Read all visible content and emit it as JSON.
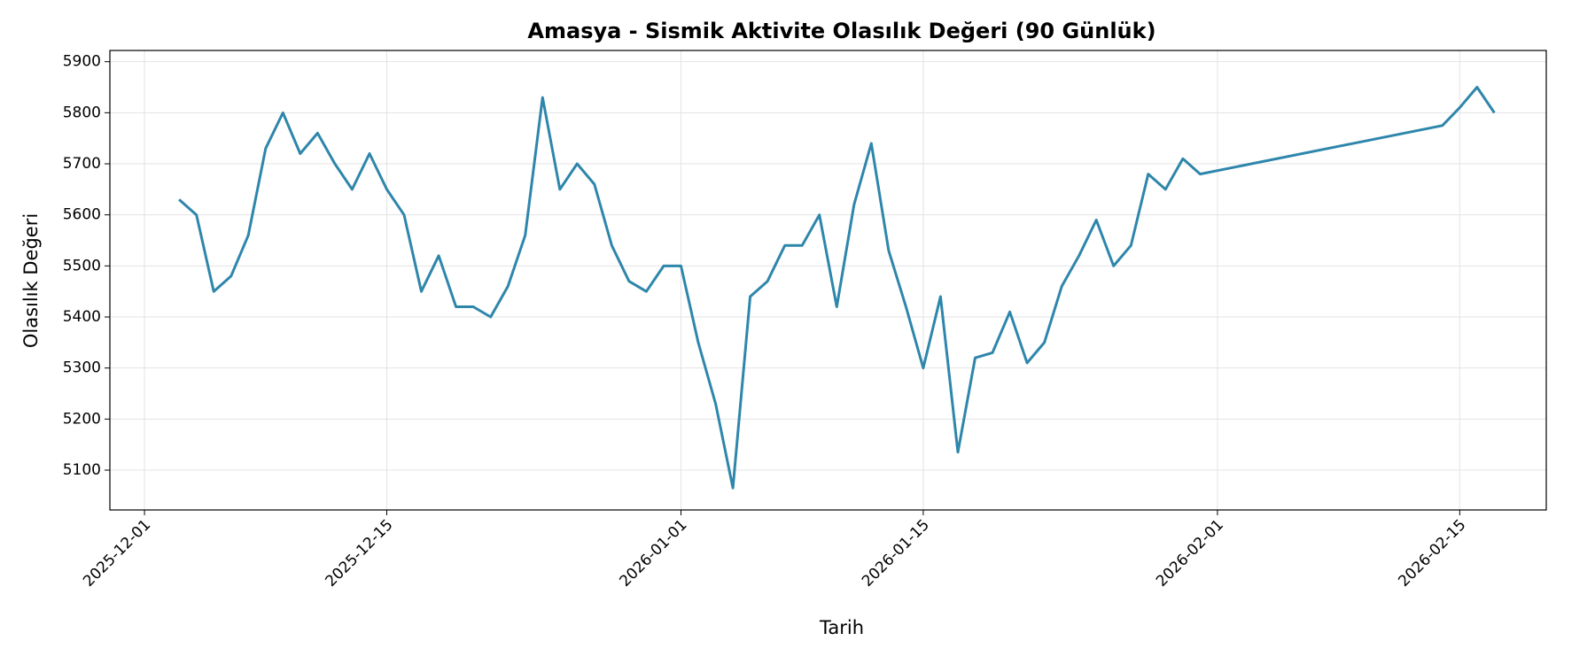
{
  "chart_data": {
    "type": "line",
    "title": "Amasya - Sismik Aktivite Olasılık Değeri (90 Günlük)",
    "x_label": "Tarih",
    "y_label": "Olasılık Değeri",
    "x": [
      "2025-12-03",
      "2025-12-04",
      "2025-12-05",
      "2025-12-06",
      "2025-12-07",
      "2025-12-08",
      "2025-12-09",
      "2025-12-10",
      "2025-12-11",
      "2025-12-12",
      "2025-12-13",
      "2025-12-14",
      "2025-12-15",
      "2025-12-16",
      "2025-12-17",
      "2025-12-18",
      "2025-12-19",
      "2025-12-20",
      "2025-12-21",
      "2025-12-22",
      "2025-12-23",
      "2025-12-24",
      "2025-12-25",
      "2025-12-26",
      "2025-12-27",
      "2025-12-28",
      "2025-12-29",
      "2025-12-30",
      "2025-12-31",
      "2026-01-01",
      "2026-01-02",
      "2026-01-03",
      "2026-01-04",
      "2026-01-05",
      "2026-01-06",
      "2026-01-07",
      "2026-01-08",
      "2026-01-09",
      "2026-01-10",
      "2026-01-11",
      "2026-01-12",
      "2026-01-13",
      "2026-01-14",
      "2026-01-15",
      "2026-01-16",
      "2026-01-17",
      "2026-01-18",
      "2026-01-19",
      "2026-01-20",
      "2026-01-21",
      "2026-01-22",
      "2026-01-23",
      "2026-01-24",
      "2026-01-25",
      "2026-01-26",
      "2026-01-27",
      "2026-01-28",
      "2026-01-29",
      "2026-01-30",
      "2026-01-31",
      "2026-02-14",
      "2026-02-15",
      "2026-02-16",
      "2026-02-17"
    ],
    "values": [
      5630,
      5600,
      5450,
      5480,
      5560,
      5730,
      5800,
      5720,
      5760,
      5700,
      5650,
      5720,
      5650,
      5600,
      5450,
      5520,
      5420,
      5420,
      5400,
      5460,
      5560,
      5830,
      5650,
      5700,
      5660,
      5540,
      5470,
      5450,
      5500,
      5500,
      5350,
      5230,
      5065,
      5440,
      5470,
      5540,
      5540,
      5600,
      5420,
      5620,
      5740,
      5530,
      5420,
      5300,
      5440,
      5135,
      5320,
      5330,
      5410,
      5310,
      5350,
      5460,
      5520,
      5590,
      5500,
      5540,
      5680,
      5650,
      5710,
      5680,
      5775,
      5810,
      5850,
      5800
    ],
    "color": "#2e86ab",
    "xlim": [
      "2025-11-29",
      "2026-02-20"
    ],
    "xticks": [
      "2025-12-01",
      "2025-12-15",
      "2026-01-01",
      "2026-01-15",
      "2026-02-01",
      "2026-02-15"
    ],
    "ylim": [
      5022,
      5922
    ],
    "yticks": [
      5100,
      5200,
      5300,
      5400,
      5500,
      5600,
      5700,
      5800,
      5900
    ],
    "grid": true
  }
}
